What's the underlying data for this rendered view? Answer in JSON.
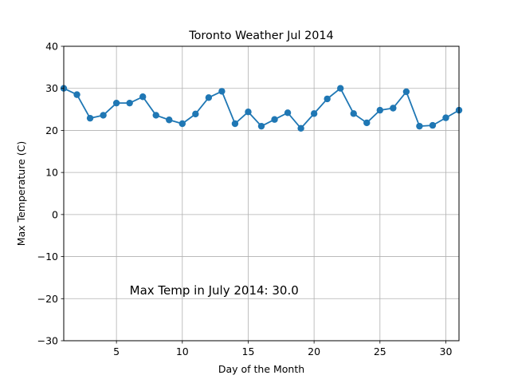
{
  "chart_data": {
    "type": "line",
    "title": "Toronto Weather Jul 2014",
    "xlabel": "Day of the Month",
    "ylabel": "Max Temperature (C)",
    "xlim": [
      1,
      31
    ],
    "ylim": [
      -30,
      40
    ],
    "xticks": [
      5,
      10,
      15,
      20,
      25,
      30
    ],
    "yticks": [
      -30,
      -20,
      -10,
      0,
      10,
      20,
      30,
      40
    ],
    "grid": true,
    "series": [
      {
        "color": "#1f77b4",
        "marker": "circle",
        "x": [
          1,
          2,
          3,
          4,
          5,
          6,
          7,
          8,
          9,
          10,
          11,
          12,
          13,
          14,
          15,
          16,
          17,
          18,
          19,
          20,
          21,
          22,
          23,
          24,
          25,
          26,
          27,
          28,
          29,
          30,
          31
        ],
        "values": [
          30.0,
          28.5,
          22.9,
          23.6,
          26.5,
          26.5,
          28.0,
          23.6,
          22.5,
          21.6,
          23.9,
          27.8,
          29.3,
          21.6,
          24.4,
          21.0,
          22.6,
          24.2,
          20.5,
          24.0,
          27.5,
          30.0,
          24.0,
          21.8,
          24.8,
          25.3,
          29.2,
          21.0,
          21.2,
          23.0,
          24.8
        ]
      }
    ],
    "annotations": [
      {
        "text": "Max Temp in July 2014: 30.0",
        "x": 6,
        "y": -19,
        "color": "#ff0000"
      }
    ]
  }
}
